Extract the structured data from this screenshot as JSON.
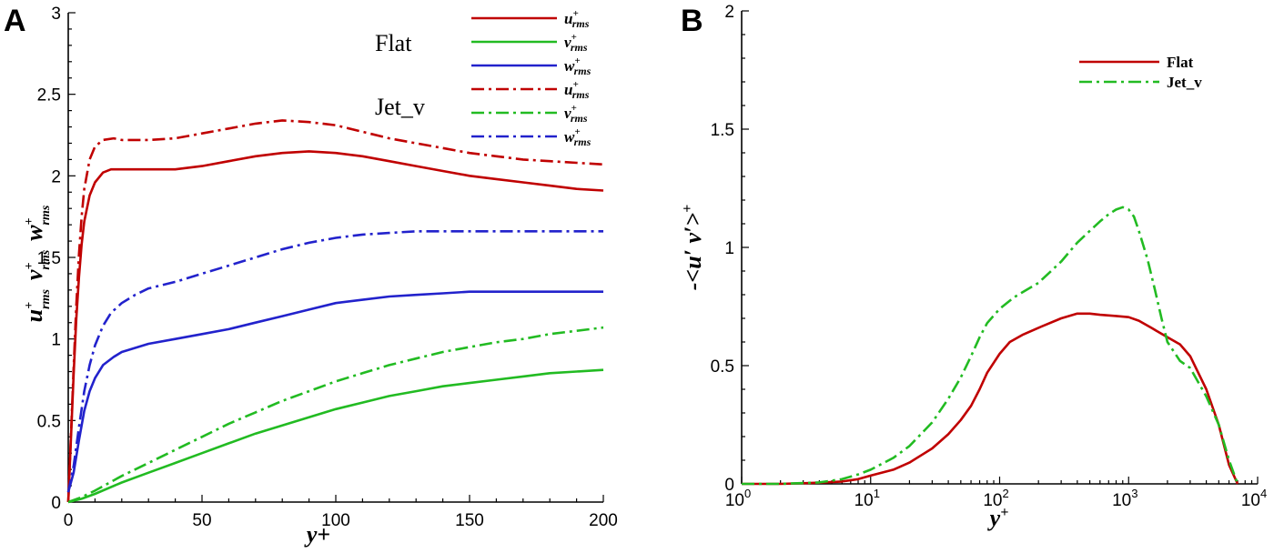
{
  "chart_data": [
    {
      "panel": "A",
      "type": "line",
      "xlabel": "y+",
      "ylabel": "u+rms  v+rms  w+rms",
      "xlim": [
        0,
        200
      ],
      "ylim": [
        0,
        3
      ],
      "xticks": [
        "0",
        "50",
        "100",
        "150",
        "200"
      ],
      "yticks": [
        "0",
        "0.5",
        "1",
        "1.5",
        "2",
        "2.5",
        "3"
      ],
      "annotations": [
        "Flat",
        "Jet_v"
      ],
      "legend_position": "top-right",
      "series": [
        {
          "name": "u+rms",
          "group": "Flat",
          "color": "#c00000",
          "dash": "solid",
          "points": [
            [
              0,
              0
            ],
            [
              1,
              0.38
            ],
            [
              2,
              0.78
            ],
            [
              3,
              1.12
            ],
            [
              4,
              1.38
            ],
            [
              5,
              1.58
            ],
            [
              6,
              1.72
            ],
            [
              8,
              1.88
            ],
            [
              10,
              1.96
            ],
            [
              13,
              2.02
            ],
            [
              16,
              2.04
            ],
            [
              20,
              2.04
            ],
            [
              30,
              2.04
            ],
            [
              40,
              2.04
            ],
            [
              50,
              2.06
            ],
            [
              60,
              2.09
            ],
            [
              70,
              2.12
            ],
            [
              80,
              2.14
            ],
            [
              90,
              2.15
            ],
            [
              100,
              2.14
            ],
            [
              110,
              2.12
            ],
            [
              120,
              2.09
            ],
            [
              130,
              2.06
            ],
            [
              140,
              2.03
            ],
            [
              150,
              2.0
            ],
            [
              160,
              1.98
            ],
            [
              170,
              1.96
            ],
            [
              180,
              1.94
            ],
            [
              190,
              1.92
            ],
            [
              200,
              1.91
            ]
          ]
        },
        {
          "name": "v+rms",
          "group": "Flat",
          "color": "#22bb22",
          "dash": "solid",
          "points": [
            [
              0,
              0
            ],
            [
              5,
              0.02
            ],
            [
              10,
              0.05
            ],
            [
              20,
              0.12
            ],
            [
              30,
              0.18
            ],
            [
              40,
              0.24
            ],
            [
              50,
              0.3
            ],
            [
              60,
              0.36
            ],
            [
              70,
              0.42
            ],
            [
              80,
              0.47
            ],
            [
              90,
              0.52
            ],
            [
              100,
              0.57
            ],
            [
              110,
              0.61
            ],
            [
              120,
              0.65
            ],
            [
              130,
              0.68
            ],
            [
              140,
              0.71
            ],
            [
              150,
              0.73
            ],
            [
              160,
              0.75
            ],
            [
              170,
              0.77
            ],
            [
              180,
              0.79
            ],
            [
              190,
              0.8
            ],
            [
              200,
              0.81
            ]
          ]
        },
        {
          "name": "w+rms",
          "group": "Flat",
          "color": "#2222cc",
          "dash": "solid",
          "points": [
            [
              0,
              0.06
            ],
            [
              2,
              0.18
            ],
            [
              4,
              0.38
            ],
            [
              6,
              0.56
            ],
            [
              8,
              0.68
            ],
            [
              10,
              0.76
            ],
            [
              13,
              0.84
            ],
            [
              17,
              0.89
            ],
            [
              20,
              0.92
            ],
            [
              30,
              0.97
            ],
            [
              40,
              1.0
            ],
            [
              50,
              1.03
            ],
            [
              60,
              1.06
            ],
            [
              70,
              1.1
            ],
            [
              80,
              1.14
            ],
            [
              90,
              1.18
            ],
            [
              100,
              1.22
            ],
            [
              110,
              1.24
            ],
            [
              120,
              1.26
            ],
            [
              130,
              1.27
            ],
            [
              140,
              1.28
            ],
            [
              150,
              1.29
            ],
            [
              160,
              1.29
            ],
            [
              170,
              1.29
            ],
            [
              180,
              1.29
            ],
            [
              190,
              1.29
            ],
            [
              200,
              1.29
            ]
          ]
        },
        {
          "name": "u+rms",
          "group": "Jet_v",
          "color": "#c00000",
          "dash": "dashdot",
          "points": [
            [
              0,
              0
            ],
            [
              1,
              0.4
            ],
            [
              2,
              0.82
            ],
            [
              3,
              1.2
            ],
            [
              4,
              1.52
            ],
            [
              5,
              1.75
            ],
            [
              6,
              1.92
            ],
            [
              8,
              2.1
            ],
            [
              10,
              2.18
            ],
            [
              13,
              2.22
            ],
            [
              17,
              2.23
            ],
            [
              20,
              2.22
            ],
            [
              25,
              2.22
            ],
            [
              30,
              2.22
            ],
            [
              40,
              2.23
            ],
            [
              50,
              2.26
            ],
            [
              60,
              2.29
            ],
            [
              70,
              2.32
            ],
            [
              80,
              2.34
            ],
            [
              90,
              2.33
            ],
            [
              100,
              2.31
            ],
            [
              110,
              2.27
            ],
            [
              120,
              2.23
            ],
            [
              130,
              2.2
            ],
            [
              140,
              2.17
            ],
            [
              150,
              2.14
            ],
            [
              160,
              2.12
            ],
            [
              170,
              2.1
            ],
            [
              180,
              2.09
            ],
            [
              190,
              2.08
            ],
            [
              200,
              2.07
            ]
          ]
        },
        {
          "name": "v+rms",
          "group": "Jet_v",
          "color": "#22bb22",
          "dash": "dashdot",
          "points": [
            [
              0,
              0
            ],
            [
              5,
              0.03
            ],
            [
              10,
              0.07
            ],
            [
              20,
              0.16
            ],
            [
              30,
              0.24
            ],
            [
              40,
              0.32
            ],
            [
              50,
              0.4
            ],
            [
              60,
              0.48
            ],
            [
              70,
              0.55
            ],
            [
              80,
              0.62
            ],
            [
              90,
              0.68
            ],
            [
              100,
              0.74
            ],
            [
              110,
              0.79
            ],
            [
              120,
              0.84
            ],
            [
              130,
              0.88
            ],
            [
              140,
              0.92
            ],
            [
              150,
              0.95
            ],
            [
              160,
              0.98
            ],
            [
              170,
              1.0
            ],
            [
              180,
              1.03
            ],
            [
              190,
              1.05
            ],
            [
              200,
              1.07
            ]
          ]
        },
        {
          "name": "w+rms",
          "group": "Jet_v",
          "color": "#2222cc",
          "dash": "dashdot",
          "points": [
            [
              0,
              0.06
            ],
            [
              2,
              0.22
            ],
            [
              4,
              0.46
            ],
            [
              6,
              0.68
            ],
            [
              8,
              0.84
            ],
            [
              10,
              0.96
            ],
            [
              13,
              1.08
            ],
            [
              16,
              1.16
            ],
            [
              20,
              1.22
            ],
            [
              25,
              1.27
            ],
            [
              30,
              1.31
            ],
            [
              40,
              1.35
            ],
            [
              50,
              1.4
            ],
            [
              60,
              1.45
            ],
            [
              70,
              1.5
            ],
            [
              80,
              1.55
            ],
            [
              90,
              1.59
            ],
            [
              100,
              1.62
            ],
            [
              110,
              1.64
            ],
            [
              120,
              1.65
            ],
            [
              130,
              1.66
            ],
            [
              140,
              1.66
            ],
            [
              150,
              1.66
            ],
            [
              160,
              1.66
            ],
            [
              170,
              1.66
            ],
            [
              180,
              1.66
            ],
            [
              190,
              1.66
            ],
            [
              200,
              1.66
            ]
          ]
        }
      ]
    },
    {
      "panel": "B",
      "type": "line",
      "xlabel": "y+",
      "ylabel": "-<u′v′>+",
      "xscale": "log",
      "xlim": [
        1,
        10000
      ],
      "ylim": [
        0,
        2
      ],
      "xticks": [
        "10^0",
        "10^1",
        "10^2",
        "10^3",
        "10^4"
      ],
      "yticks": [
        "0",
        "0.5",
        "1",
        "1.5",
        "2"
      ],
      "legend_position": "top-right",
      "series": [
        {
          "name": "Flat",
          "color": "#c00000",
          "dash": "solid",
          "points": [
            [
              1,
              0
            ],
            [
              2,
              0
            ],
            [
              4,
              0.005
            ],
            [
              6,
              0.01
            ],
            [
              8,
              0.02
            ],
            [
              10,
              0.035
            ],
            [
              15,
              0.06
            ],
            [
              20,
              0.09
            ],
            [
              30,
              0.15
            ],
            [
              40,
              0.21
            ],
            [
              50,
              0.27
            ],
            [
              60,
              0.33
            ],
            [
              70,
              0.4
            ],
            [
              80,
              0.47
            ],
            [
              100,
              0.55
            ],
            [
              120,
              0.6
            ],
            [
              150,
              0.63
            ],
            [
              200,
              0.66
            ],
            [
              300,
              0.7
            ],
            [
              400,
              0.72
            ],
            [
              500,
              0.72
            ],
            [
              600,
              0.715
            ],
            [
              800,
              0.71
            ],
            [
              1000,
              0.705
            ],
            [
              1200,
              0.69
            ],
            [
              1500,
              0.66
            ],
            [
              2000,
              0.62
            ],
            [
              2500,
              0.59
            ],
            [
              3000,
              0.54
            ],
            [
              4000,
              0.4
            ],
            [
              5000,
              0.25
            ],
            [
              6000,
              0.08
            ],
            [
              7000,
              0.0
            ]
          ]
        },
        {
          "name": "Jet_v",
          "color": "#22bb22",
          "dash": "dashdot",
          "points": [
            [
              1,
              0
            ],
            [
              2,
              0
            ],
            [
              4,
              0.006
            ],
            [
              6,
              0.02
            ],
            [
              8,
              0.04
            ],
            [
              10,
              0.06
            ],
            [
              15,
              0.11
            ],
            [
              20,
              0.16
            ],
            [
              30,
              0.26
            ],
            [
              40,
              0.36
            ],
            [
              50,
              0.45
            ],
            [
              60,
              0.54
            ],
            [
              70,
              0.62
            ],
            [
              80,
              0.68
            ],
            [
              100,
              0.74
            ],
            [
              130,
              0.79
            ],
            [
              200,
              0.85
            ],
            [
              300,
              0.94
            ],
            [
              400,
              1.02
            ],
            [
              500,
              1.07
            ],
            [
              600,
              1.11
            ],
            [
              700,
              1.14
            ],
            [
              800,
              1.16
            ],
            [
              900,
              1.17
            ],
            [
              1000,
              1.16
            ],
            [
              1100,
              1.13
            ],
            [
              1200,
              1.07
            ],
            [
              1400,
              0.95
            ],
            [
              1600,
              0.82
            ],
            [
              1800,
              0.7
            ],
            [
              2000,
              0.6
            ],
            [
              2500,
              0.52
            ],
            [
              3000,
              0.49
            ],
            [
              4000,
              0.37
            ],
            [
              5000,
              0.25
            ],
            [
              6000,
              0.1
            ],
            [
              7000,
              0.0
            ]
          ]
        }
      ]
    }
  ]
}
